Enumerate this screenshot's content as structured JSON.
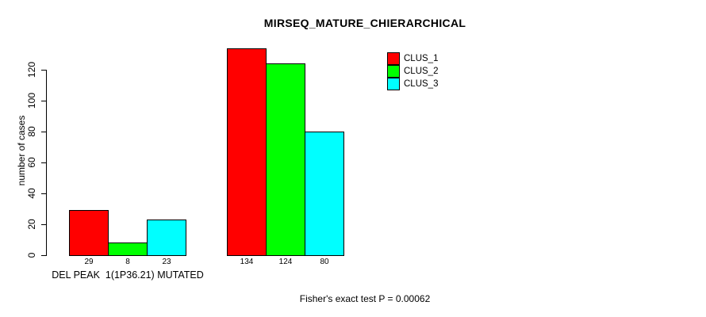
{
  "chart_data": {
    "type": "bar",
    "title": "MIRSEQ_MATURE_CHIERARCHICAL",
    "ylabel": "number of cases",
    "xlabel": "",
    "categories": [
      "DEL PEAK  1(1P36.21) MUTATED",
      ""
    ],
    "series": [
      {
        "name": "CLUS_1",
        "color": "#ff0000",
        "values": [
          29,
          134
        ]
      },
      {
        "name": "CLUS_2",
        "color": "#00ff00",
        "values": [
          8,
          124
        ]
      },
      {
        "name": "CLUS_3",
        "color": "#00ffff",
        "values": [
          23,
          80
        ]
      }
    ],
    "bar_value_labels": [
      [
        "29",
        "8",
        "23"
      ],
      [
        "134",
        "124",
        "80"
      ]
    ],
    "yticks": [
      0,
      20,
      40,
      60,
      80,
      100,
      120
    ],
    "ylim": [
      0,
      140
    ],
    "grid": false,
    "legend_position": "top-right",
    "annotation": "Fisher's exact test P = 0.00062"
  },
  "legend": {
    "items": [
      {
        "label": "CLUS_1",
        "color": "#ff0000"
      },
      {
        "label": "CLUS_2",
        "color": "#00ff00"
      },
      {
        "label": "CLUS_3",
        "color": "#00ffff"
      }
    ]
  },
  "colors": {
    "axis": "#000000",
    "background": "#ffffff",
    "text": "#000000"
  }
}
